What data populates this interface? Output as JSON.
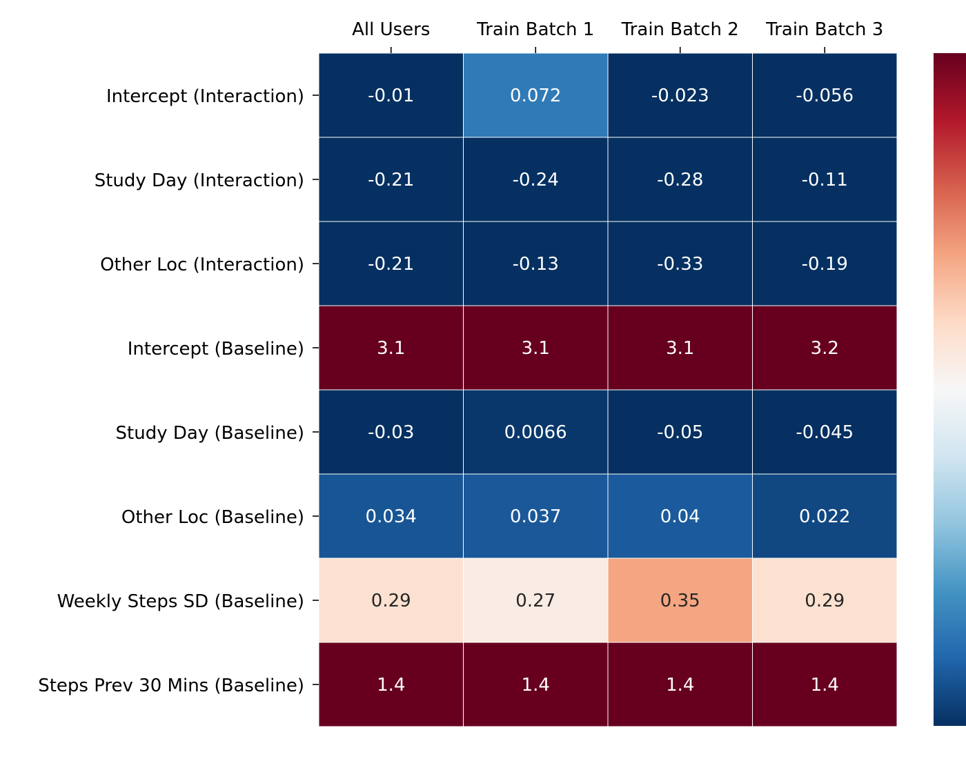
{
  "chart_data": {
    "type": "heatmap",
    "columns": [
      "All Users",
      "Train Batch 1",
      "Train Batch 2",
      "Train Batch 3"
    ],
    "rows": [
      "Intercept (Interaction)",
      "Study Day (Interaction)",
      "Other Loc (Interaction)",
      "Intercept (Baseline)",
      "Study Day (Baseline)",
      "Other Loc (Baseline)",
      "Weekly Steps SD (Baseline)",
      "Steps Prev 30 Mins (Baseline)"
    ],
    "values": [
      [
        -0.01,
        0.072,
        -0.023,
        -0.056
      ],
      [
        -0.21,
        -0.24,
        -0.28,
        -0.11
      ],
      [
        -0.21,
        -0.13,
        -0.33,
        -0.19
      ],
      [
        3.1,
        3.1,
        3.1,
        3.2
      ],
      [
        -0.03,
        0.0066,
        -0.05,
        -0.045
      ],
      [
        0.034,
        0.037,
        0.04,
        0.022
      ],
      [
        0.29,
        0.27,
        0.35,
        0.29
      ],
      [
        1.4,
        1.4,
        1.4,
        1.4
      ]
    ],
    "labels": [
      [
        "-0.01",
        "0.072",
        "-0.023",
        "-0.056"
      ],
      [
        "-0.21",
        "-0.24",
        "-0.28",
        "-0.11"
      ],
      [
        "-0.21",
        "-0.13",
        "-0.33",
        "-0.19"
      ],
      [
        "3.1",
        "3.1",
        "3.1",
        "3.2"
      ],
      [
        "-0.03",
        "0.0066",
        "-0.05",
        "-0.045"
      ],
      [
        "0.034",
        "0.037",
        "0.04",
        "0.022"
      ],
      [
        "0.29",
        "0.27",
        "0.35",
        "0.29"
      ],
      [
        "1.4",
        "1.4",
        "1.4",
        "1.4"
      ]
    ],
    "colormap": "RdBu_r",
    "color_range": [
      0,
      0.5
    ],
    "xaxis_position": "top",
    "colorbar": "right"
  }
}
